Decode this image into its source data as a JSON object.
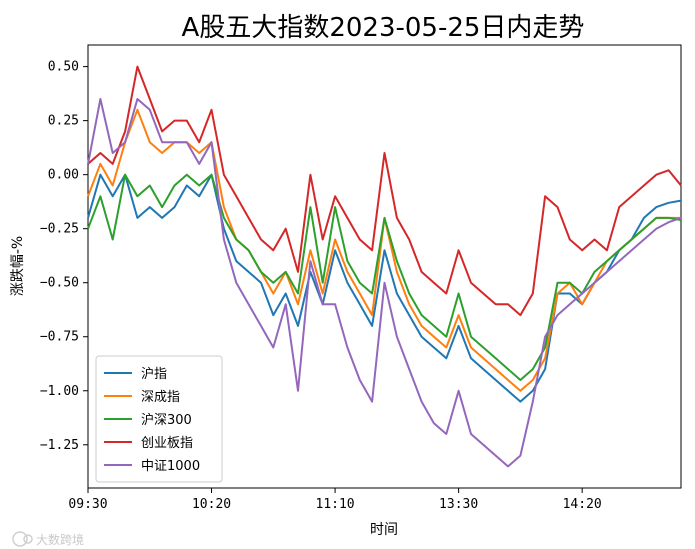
{
  "chart_data": {
    "type": "line",
    "title": "A股五大指数2023-05-25日内走势",
    "xlabel": "时间",
    "ylabel": "涨跌幅-%",
    "ylim": [
      -1.45,
      0.6
    ],
    "x_ticks": [
      "09:30",
      "10:20",
      "11:10",
      "13:30",
      "14:20"
    ],
    "y_ticks": [
      "0.50",
      "0.25",
      "0.00",
      "−0.25",
      "−0.50",
      "−0.75",
      "−1.00",
      "−1.25"
    ],
    "y_tick_values": [
      0.5,
      0.25,
      0.0,
      -0.25,
      -0.5,
      -0.75,
      -1.0,
      -1.25
    ],
    "x_range_minutes": [
      0,
      240
    ],
    "x_tick_minutes": [
      0,
      50,
      100,
      150,
      200
    ],
    "legend_position": "lower-left",
    "grid": false,
    "x": [
      0,
      5,
      10,
      15,
      20,
      25,
      30,
      35,
      40,
      45,
      50,
      55,
      60,
      65,
      70,
      75,
      80,
      85,
      90,
      95,
      100,
      105,
      110,
      115,
      120,
      125,
      130,
      135,
      140,
      145,
      150,
      155,
      160,
      165,
      170,
      175,
      180,
      185,
      190,
      195,
      200,
      205,
      210,
      215,
      220,
      225,
      230,
      235,
      240
    ],
    "series": [
      {
        "name": "沪指",
        "color": "#1f77b4",
        "values": [
          -0.2,
          0.0,
          -0.1,
          0.0,
          -0.2,
          -0.15,
          -0.2,
          -0.15,
          -0.05,
          -0.1,
          0.0,
          -0.25,
          -0.4,
          -0.45,
          -0.5,
          -0.65,
          -0.55,
          -0.7,
          -0.45,
          -0.6,
          -0.35,
          -0.5,
          -0.6,
          -0.7,
          -0.35,
          -0.55,
          -0.65,
          -0.75,
          -0.8,
          -0.85,
          -0.7,
          -0.85,
          -0.9,
          -0.95,
          -1.0,
          -1.05,
          -1.0,
          -0.9,
          -0.55,
          -0.55,
          -0.6,
          -0.5,
          -0.45,
          -0.35,
          -0.3,
          -0.2,
          -0.15,
          -0.13,
          -0.12
        ]
      },
      {
        "name": "深成指",
        "color": "#ff7f0e",
        "values": [
          -0.1,
          0.05,
          -0.05,
          0.15,
          0.3,
          0.15,
          0.1,
          0.15,
          0.15,
          0.1,
          0.15,
          -0.15,
          -0.3,
          -0.35,
          -0.45,
          -0.55,
          -0.45,
          -0.6,
          -0.35,
          -0.55,
          -0.3,
          -0.45,
          -0.55,
          -0.65,
          -0.2,
          -0.45,
          -0.6,
          -0.7,
          -0.75,
          -0.8,
          -0.65,
          -0.8,
          -0.85,
          -0.9,
          -0.95,
          -1.0,
          -0.95,
          -0.85,
          -0.55,
          -0.5,
          -0.6,
          -0.5,
          -0.4,
          -0.35,
          -0.3,
          -0.25,
          -0.2,
          -0.2,
          -0.2
        ]
      },
      {
        "name": "沪深300",
        "color": "#2ca02c",
        "values": [
          -0.25,
          -0.1,
          -0.3,
          0.0,
          -0.1,
          -0.05,
          -0.15,
          -0.05,
          0.0,
          -0.05,
          0.0,
          -0.2,
          -0.3,
          -0.35,
          -0.45,
          -0.5,
          -0.45,
          -0.55,
          -0.15,
          -0.5,
          -0.15,
          -0.4,
          -0.5,
          -0.55,
          -0.2,
          -0.4,
          -0.55,
          -0.65,
          -0.7,
          -0.75,
          -0.55,
          -0.75,
          -0.8,
          -0.85,
          -0.9,
          -0.95,
          -0.9,
          -0.8,
          -0.5,
          -0.5,
          -0.55,
          -0.45,
          -0.4,
          -0.35,
          -0.3,
          -0.25,
          -0.2,
          -0.2,
          -0.21
        ]
      },
      {
        "name": "创业板指",
        "color": "#d62728",
        "values": [
          0.05,
          0.1,
          0.05,
          0.2,
          0.5,
          0.35,
          0.2,
          0.25,
          0.25,
          0.15,
          0.3,
          0.0,
          -0.1,
          -0.2,
          -0.3,
          -0.35,
          -0.25,
          -0.45,
          0.0,
          -0.3,
          -0.1,
          -0.2,
          -0.3,
          -0.35,
          0.1,
          -0.2,
          -0.3,
          -0.45,
          -0.5,
          -0.55,
          -0.35,
          -0.5,
          -0.55,
          -0.6,
          -0.6,
          -0.65,
          -0.55,
          -0.1,
          -0.15,
          -0.3,
          -0.35,
          -0.3,
          -0.35,
          -0.15,
          -0.1,
          -0.05,
          0.0,
          0.02,
          -0.05
        ]
      },
      {
        "name": "中证1000",
        "color": "#9467bd",
        "values": [
          0.05,
          0.35,
          0.1,
          0.15,
          0.35,
          0.3,
          0.15,
          0.15,
          0.15,
          0.05,
          0.15,
          -0.3,
          -0.5,
          -0.6,
          -0.7,
          -0.8,
          -0.6,
          -1.0,
          -0.4,
          -0.6,
          -0.6,
          -0.8,
          -0.95,
          -1.05,
          -0.5,
          -0.75,
          -0.9,
          -1.05,
          -1.15,
          -1.2,
          -1.0,
          -1.2,
          -1.25,
          -1.3,
          -1.35,
          -1.3,
          -1.05,
          -0.75,
          -0.65,
          -0.6,
          -0.55,
          -0.5,
          -0.45,
          -0.4,
          -0.35,
          -0.3,
          -0.25,
          -0.22,
          -0.2
        ]
      }
    ]
  },
  "watermark": "大数跨境"
}
